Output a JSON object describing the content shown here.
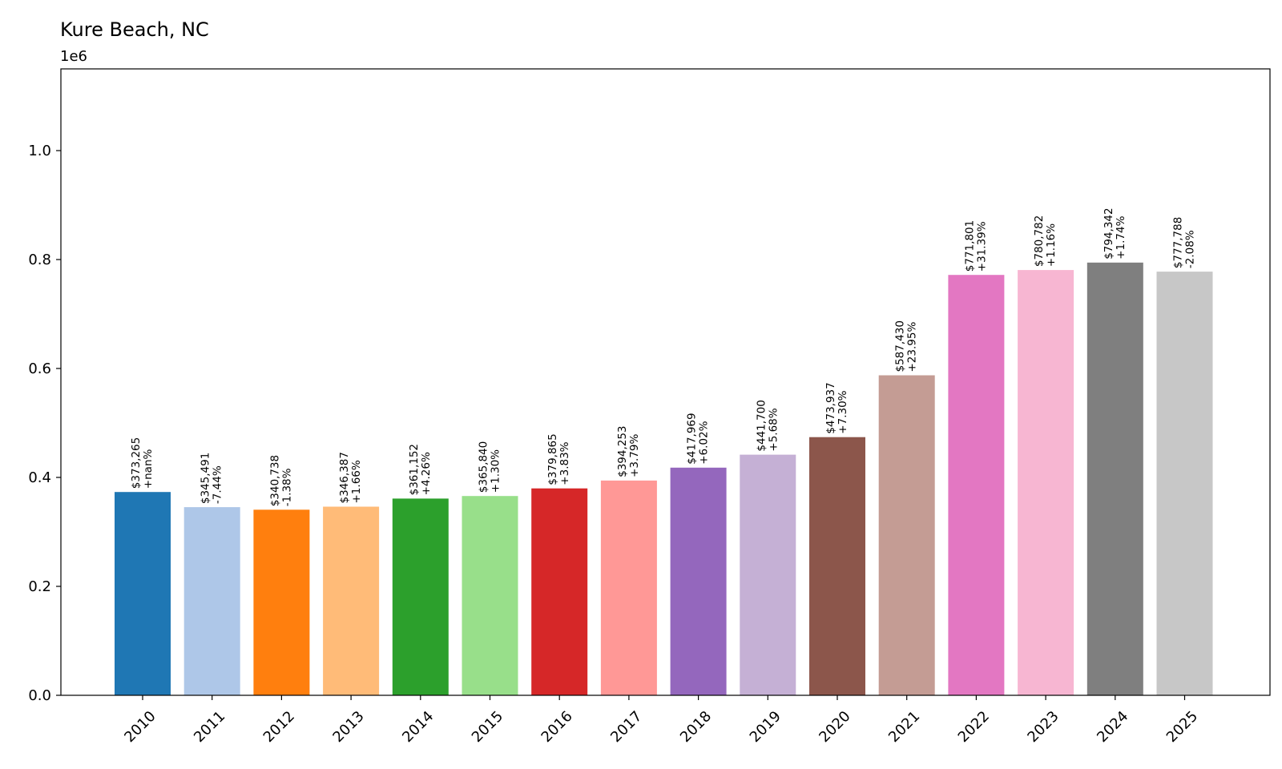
{
  "chart_data": {
    "type": "bar",
    "title": "Kure Beach, NC",
    "offset_label": "1e6",
    "xlabel": "",
    "ylabel": "",
    "ylim": [
      0,
      1150000
    ],
    "yticks": [
      0,
      200000,
      400000,
      600000,
      800000,
      1000000
    ],
    "ytick_labels": [
      "0.0",
      "0.2",
      "0.4",
      "0.6",
      "0.8",
      "1.0"
    ],
    "grid": false,
    "categories": [
      "2010",
      "2011",
      "2012",
      "2013",
      "2014",
      "2015",
      "2016",
      "2017",
      "2018",
      "2019",
      "2020",
      "2021",
      "2022",
      "2023",
      "2024",
      "2025"
    ],
    "values": [
      373265,
      345491,
      340738,
      346387,
      361152,
      365840,
      379865,
      394253,
      417969,
      441700,
      473937,
      587430,
      771801,
      780782,
      794342,
      777788
    ],
    "value_labels": [
      "$373,265",
      "$345,491",
      "$340,738",
      "$346,387",
      "$361,152",
      "$365,840",
      "$379,865",
      "$394,253",
      "$417,969",
      "$441,700",
      "$473,937",
      "$587,430",
      "$771,801",
      "$780,782",
      "$794,342",
      "$777,788"
    ],
    "change_labels": [
      "+nan%",
      "-7.44%",
      "-1.38%",
      "+1.66%",
      "+4.26%",
      "+1.30%",
      "+3.83%",
      "+3.79%",
      "+6.02%",
      "+5.68%",
      "+7.30%",
      "+23.95%",
      "+31.39%",
      "+1.16%",
      "+1.74%",
      "-2.08%"
    ],
    "colors": [
      "#1f77b4",
      "#aec7e8",
      "#ff7f0e",
      "#ffbb78",
      "#2ca02c",
      "#98df8a",
      "#d62728",
      "#ff9896",
      "#9467bd",
      "#c5b0d5",
      "#8c564b",
      "#c49c94",
      "#e377c2",
      "#f7b6d2",
      "#7f7f7f",
      "#c7c7c7"
    ]
  }
}
